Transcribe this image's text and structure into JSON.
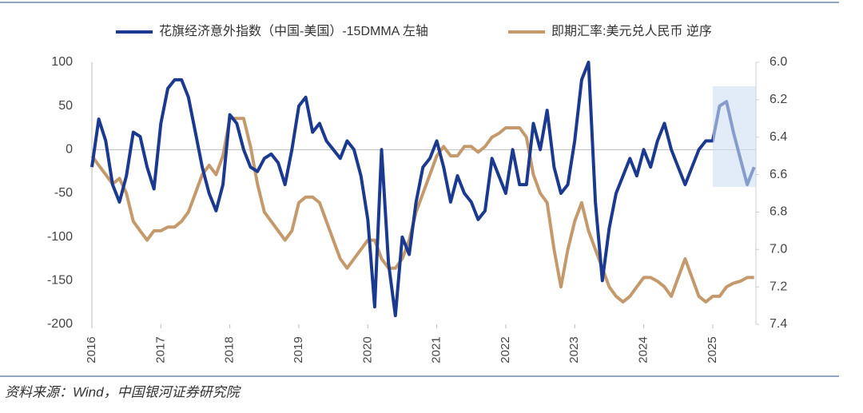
{
  "chart_data": {
    "type": "line",
    "legend": "top",
    "source": "资料来源：Wind，中国银河证券研究院",
    "x": [
      2016,
      2016.1,
      2016.2,
      2016.3,
      2016.4,
      2016.5,
      2016.6,
      2016.7,
      2016.8,
      2016.9,
      2017,
      2017.1,
      2017.2,
      2017.3,
      2017.4,
      2017.5,
      2017.6,
      2017.7,
      2017.8,
      2017.9,
      2018,
      2018.1,
      2018.2,
      2018.3,
      2018.4,
      2018.5,
      2018.6,
      2018.7,
      2018.8,
      2018.9,
      2019,
      2019.1,
      2019.2,
      2019.3,
      2019.4,
      2019.5,
      2019.6,
      2019.7,
      2019.8,
      2019.9,
      2020,
      2020.1,
      2020.2,
      2020.3,
      2020.4,
      2020.5,
      2020.6,
      2020.7,
      2020.8,
      2020.9,
      2021,
      2021.1,
      2021.2,
      2021.3,
      2021.4,
      2021.5,
      2021.6,
      2021.7,
      2021.8,
      2021.9,
      2022,
      2022.1,
      2022.2,
      2022.3,
      2022.4,
      2022.5,
      2022.6,
      2022.7,
      2022.8,
      2022.9,
      2023,
      2023.1,
      2023.2,
      2023.3,
      2023.4,
      2023.5,
      2023.6,
      2023.7,
      2023.8,
      2023.9,
      2024,
      2024.1,
      2024.2,
      2024.3,
      2024.4,
      2024.5,
      2024.6,
      2024.7,
      2024.8,
      2024.9,
      2025,
      2025.1,
      2025.2,
      2025.3,
      2025.4,
      2025.5,
      2025.6
    ],
    "series": [
      {
        "name": "花旗经济意外指数（中国-美国）-15DMMA 左轴",
        "color": "#1b3a8f",
        "axis": "y",
        "values": [
          -20,
          35,
          10,
          -40,
          -60,
          -30,
          20,
          15,
          -20,
          -45,
          30,
          70,
          80,
          80,
          60,
          20,
          -20,
          -50,
          -70,
          -40,
          40,
          30,
          0,
          -20,
          -25,
          -10,
          -5,
          -15,
          -40,
          0,
          50,
          60,
          20,
          30,
          10,
          0,
          -10,
          10,
          0,
          -30,
          -80,
          -180,
          0,
          -130,
          -190,
          -100,
          -120,
          -60,
          -20,
          -10,
          10,
          -20,
          -60,
          -30,
          -50,
          -60,
          -80,
          -70,
          -10,
          -30,
          -50,
          0,
          -40,
          -40,
          30,
          0,
          45,
          -20,
          -50,
          -40,
          10,
          80,
          100,
          -60,
          -150,
          -90,
          -50,
          -30,
          -10,
          -30,
          0,
          -20,
          10,
          30,
          0,
          -20,
          -40,
          -20,
          0,
          10,
          10,
          50,
          55,
          20,
          -10,
          -40,
          -20
        ]
      },
      {
        "name": "即期汇率:美元兑人民币 逆序",
        "color": "#c49a6c",
        "axis": "y2",
        "values": [
          6.5,
          6.55,
          6.6,
          6.65,
          6.62,
          6.7,
          6.85,
          6.9,
          6.95,
          6.9,
          6.9,
          6.88,
          6.88,
          6.85,
          6.8,
          6.7,
          6.6,
          6.55,
          6.6,
          6.5,
          6.3,
          6.3,
          6.3,
          6.45,
          6.65,
          6.8,
          6.85,
          6.9,
          6.95,
          6.9,
          6.75,
          6.72,
          6.72,
          6.75,
          6.85,
          6.95,
          7.05,
          7.1,
          7.05,
          7,
          6.95,
          6.95,
          7.05,
          7.1,
          7.1,
          7.05,
          6.95,
          6.8,
          6.7,
          6.6,
          6.5,
          6.45,
          6.5,
          6.5,
          6.45,
          6.45,
          6.48,
          6.45,
          6.4,
          6.38,
          6.35,
          6.35,
          6.35,
          6.4,
          6.6,
          6.7,
          6.75,
          7,
          7.2,
          7,
          6.85,
          6.75,
          6.9,
          7,
          7.1,
          7.2,
          7.25,
          7.28,
          7.25,
          7.2,
          7.15,
          7.15,
          7.17,
          7.2,
          7.25,
          7.15,
          7.05,
          7.15,
          7.25,
          7.28,
          7.25,
          7.25,
          7.2,
          7.18,
          7.17,
          7.15,
          7.15
        ]
      }
    ],
    "xlim": [
      2016,
      2025.65
    ],
    "xticks": [
      2016,
      2017,
      2018,
      2019,
      2020,
      2021,
      2022,
      2023,
      2024,
      2025
    ],
    "ylim": [
      -200,
      100
    ],
    "yticks": [
      -200,
      -150,
      -100,
      -50,
      0,
      50,
      100
    ],
    "y2lim": [
      6,
      7.4
    ],
    "y2_reversed": true,
    "y2ticks": [
      {
        "value": 6,
        "label": "6.0"
      },
      6.2,
      6.4,
      6.6,
      6.8,
      {
        "value": 7,
        "label": "7.0"
      },
      7.2,
      7.4
    ]
  }
}
